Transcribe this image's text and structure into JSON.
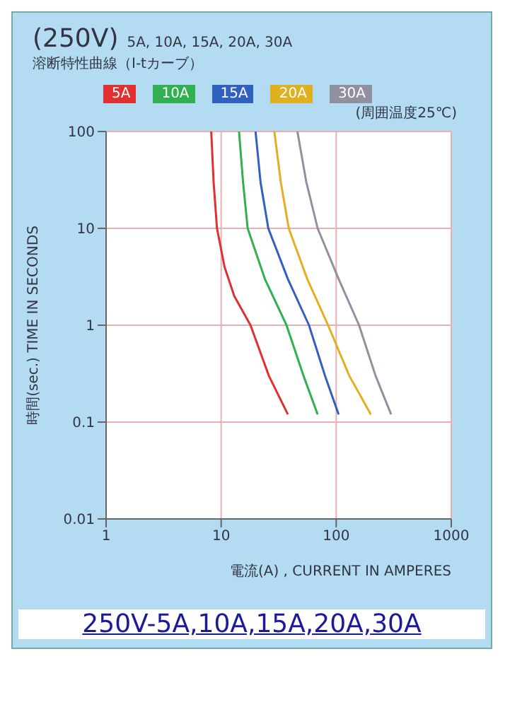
{
  "chart_data": {
    "type": "line",
    "title": "(250V)",
    "subtitle": "5A, 10A, 15A, 20A, 30A",
    "xlabel": "電流(A) , CURRENT IN AMPERES",
    "ylabel": "時間(sec.) TIME IN SECONDS",
    "annotations": [
      "溶断特性曲線（I-tカーブ）",
      "(周囲温度25℃)",
      "250V-5A,10A,15A,20A,30A"
    ],
    "log": "xy",
    "grid": true,
    "legend": "top",
    "marker": "none",
    "line_style": "solid",
    "xlim": [
      1,
      1000
    ],
    "xticks": [
      1,
      10,
      100,
      1000
    ],
    "ylim": [
      0.01,
      100
    ],
    "yticks": [
      {
        "value": 0.01,
        "label": "0.01"
      },
      {
        "value": 0.1,
        "label": "0.1"
      },
      1,
      10,
      100
    ],
    "series": [
      {
        "name": "5A",
        "color": "#e03030",
        "x": [
          8.2,
          8.6,
          9.2,
          10.7,
          13,
          18,
          26,
          38
        ],
        "values": [
          100,
          30,
          10,
          4,
          2,
          1,
          0.3,
          0.12
        ]
      },
      {
        "name": "10A",
        "color": "#30b050",
        "x": [
          14.3,
          15.5,
          17,
          24,
          37,
          52,
          69
        ],
        "values": [
          100,
          30,
          10,
          3,
          1,
          0.3,
          0.12
        ]
      },
      {
        "name": "15A",
        "color": "#3060c0",
        "x": [
          19.9,
          22,
          25.7,
          38,
          58,
          80,
          105
        ],
        "values": [
          100,
          30,
          10,
          3,
          1,
          0.3,
          0.12
        ]
      },
      {
        "name": "20A",
        "color": "#e0b020",
        "x": [
          29,
          33,
          38.7,
          56,
          85,
          130,
          200
        ],
        "values": [
          100,
          30,
          10,
          3,
          1,
          0.3,
          0.12
        ]
      },
      {
        "name": "30A",
        "color": "#9090a0",
        "x": [
          46,
          55,
          69,
          105,
          158,
          220,
          300
        ],
        "values": [
          100,
          30,
          10,
          3,
          1,
          0.3,
          0.12
        ]
      }
    ]
  }
}
